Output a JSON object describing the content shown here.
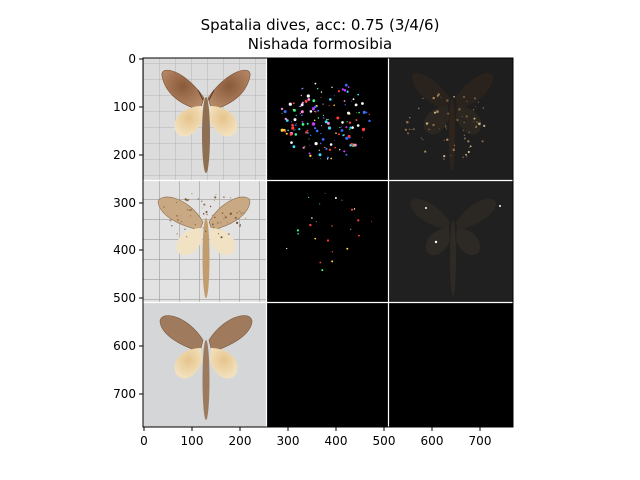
{
  "figure": {
    "title_line1": "Spatalia dives, acc: 0.75 (3/4/6)",
    "title_line2": "Nishada formosibia",
    "background": "#ffffff"
  },
  "image_grid": {
    "rows": 3,
    "cols": 3,
    "separator_color": "#ffffff",
    "cells": [
      {
        "row": 0,
        "col": 0,
        "content": "moth-photo",
        "tone": "dark-brown forewings, pale hindwings, grid-paper background"
      },
      {
        "row": 0,
        "col": 1,
        "content": "saliency-map",
        "tone": "mostly black with colorful speckles"
      },
      {
        "row": 0,
        "col": 2,
        "content": "masked-moth",
        "tone": "dim moth silhouette on dark gray"
      },
      {
        "row": 1,
        "col": 0,
        "content": "moth-photo",
        "tone": "speckled pale-brown moth on grid paper"
      },
      {
        "row": 1,
        "col": 1,
        "content": "saliency-map",
        "tone": "black with sparse speckles"
      },
      {
        "row": 1,
        "col": 2,
        "content": "masked-moth",
        "tone": "faint moth silhouette on dark gray"
      },
      {
        "row": 2,
        "col": 0,
        "content": "moth-photo",
        "tone": "brown moth on gray background"
      },
      {
        "row": 2,
        "col": 1,
        "content": "empty",
        "tone": "black"
      },
      {
        "row": 2,
        "col": 2,
        "content": "empty",
        "tone": "black"
      }
    ]
  },
  "x_axis": {
    "ticks": [
      "0",
      "100",
      "200",
      "300",
      "400",
      "500",
      "600",
      "700"
    ],
    "range": [
      0,
      770
    ]
  },
  "y_axis": {
    "ticks": [
      "0",
      "100",
      "200",
      "300",
      "400",
      "500",
      "600",
      "700"
    ],
    "range": [
      0,
      770
    ]
  }
}
